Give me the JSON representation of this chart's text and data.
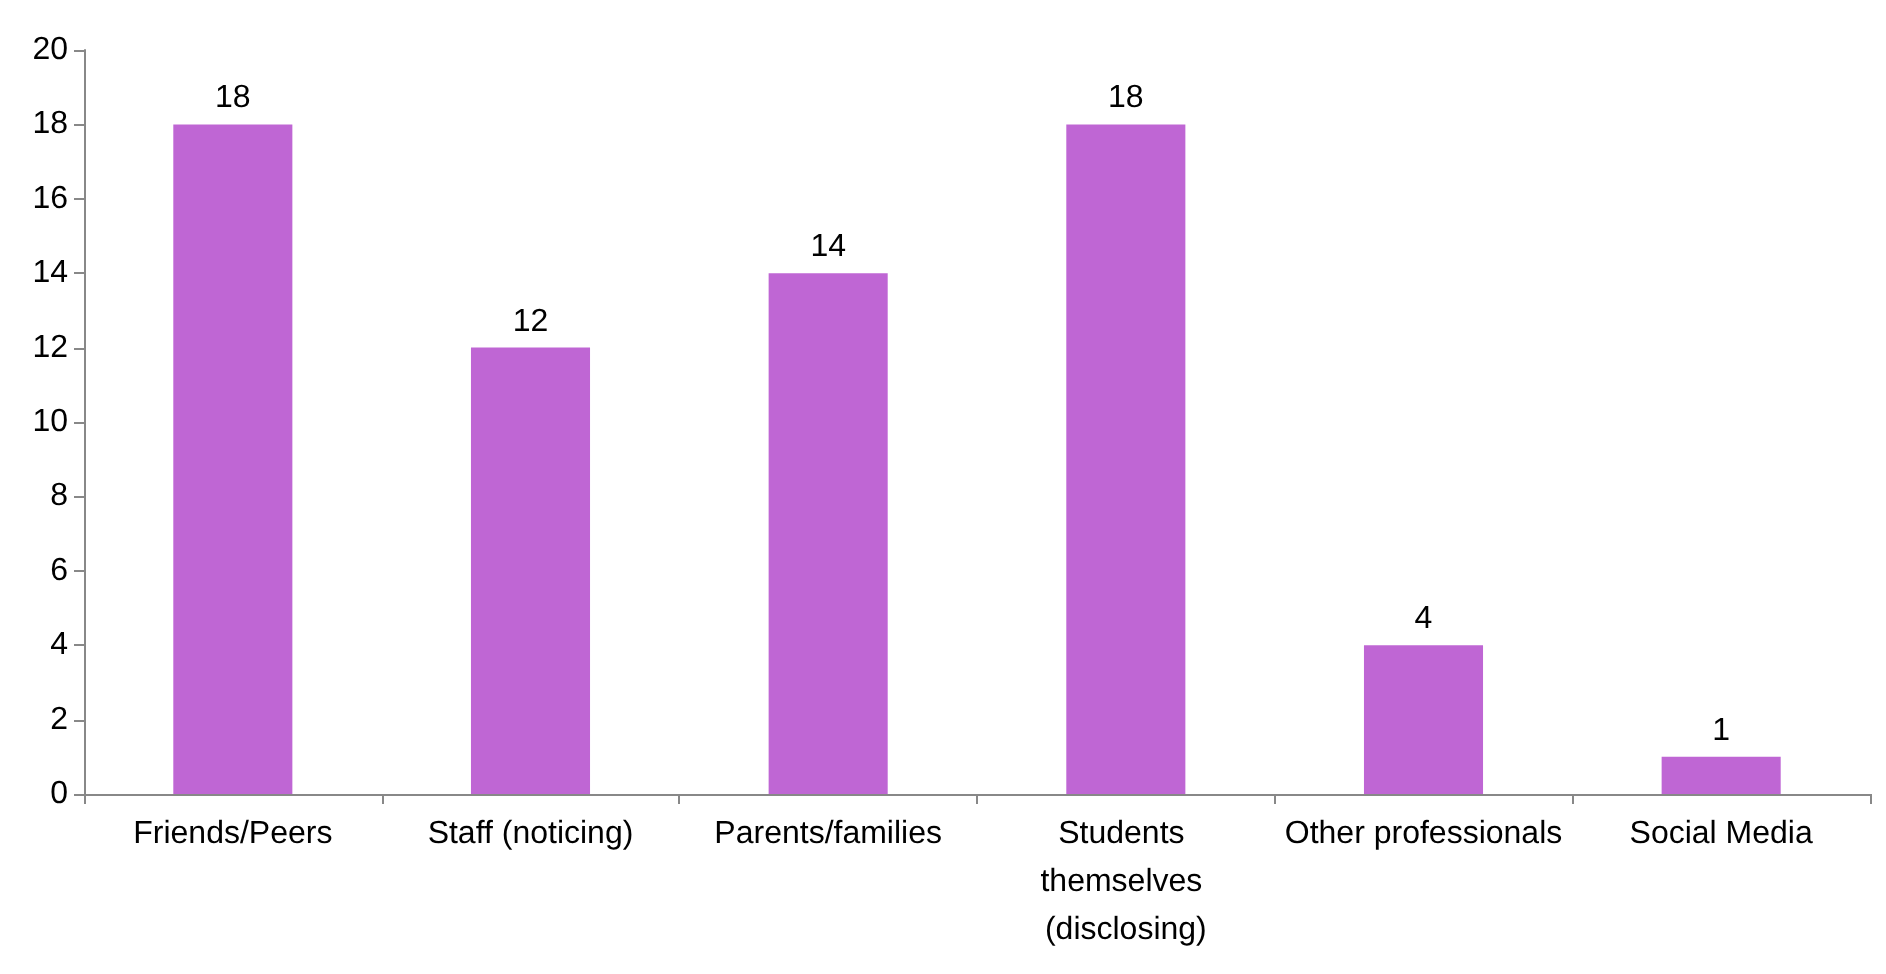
{
  "chart_data": {
    "type": "bar",
    "categories": [
      "Friends/Peers",
      "Staff (noticing)",
      "Parents/families",
      "Students themselves (disclosing)",
      "Other professionals",
      "Social Media"
    ],
    "values": [
      18,
      12,
      14,
      18,
      4,
      1
    ],
    "color": "#bf66d4",
    "ylim": [
      0,
      20
    ],
    "yticks": [
      0,
      2,
      4,
      6,
      8,
      10,
      12,
      14,
      16,
      18,
      20
    ],
    "grid": false,
    "data_labels": true
  }
}
